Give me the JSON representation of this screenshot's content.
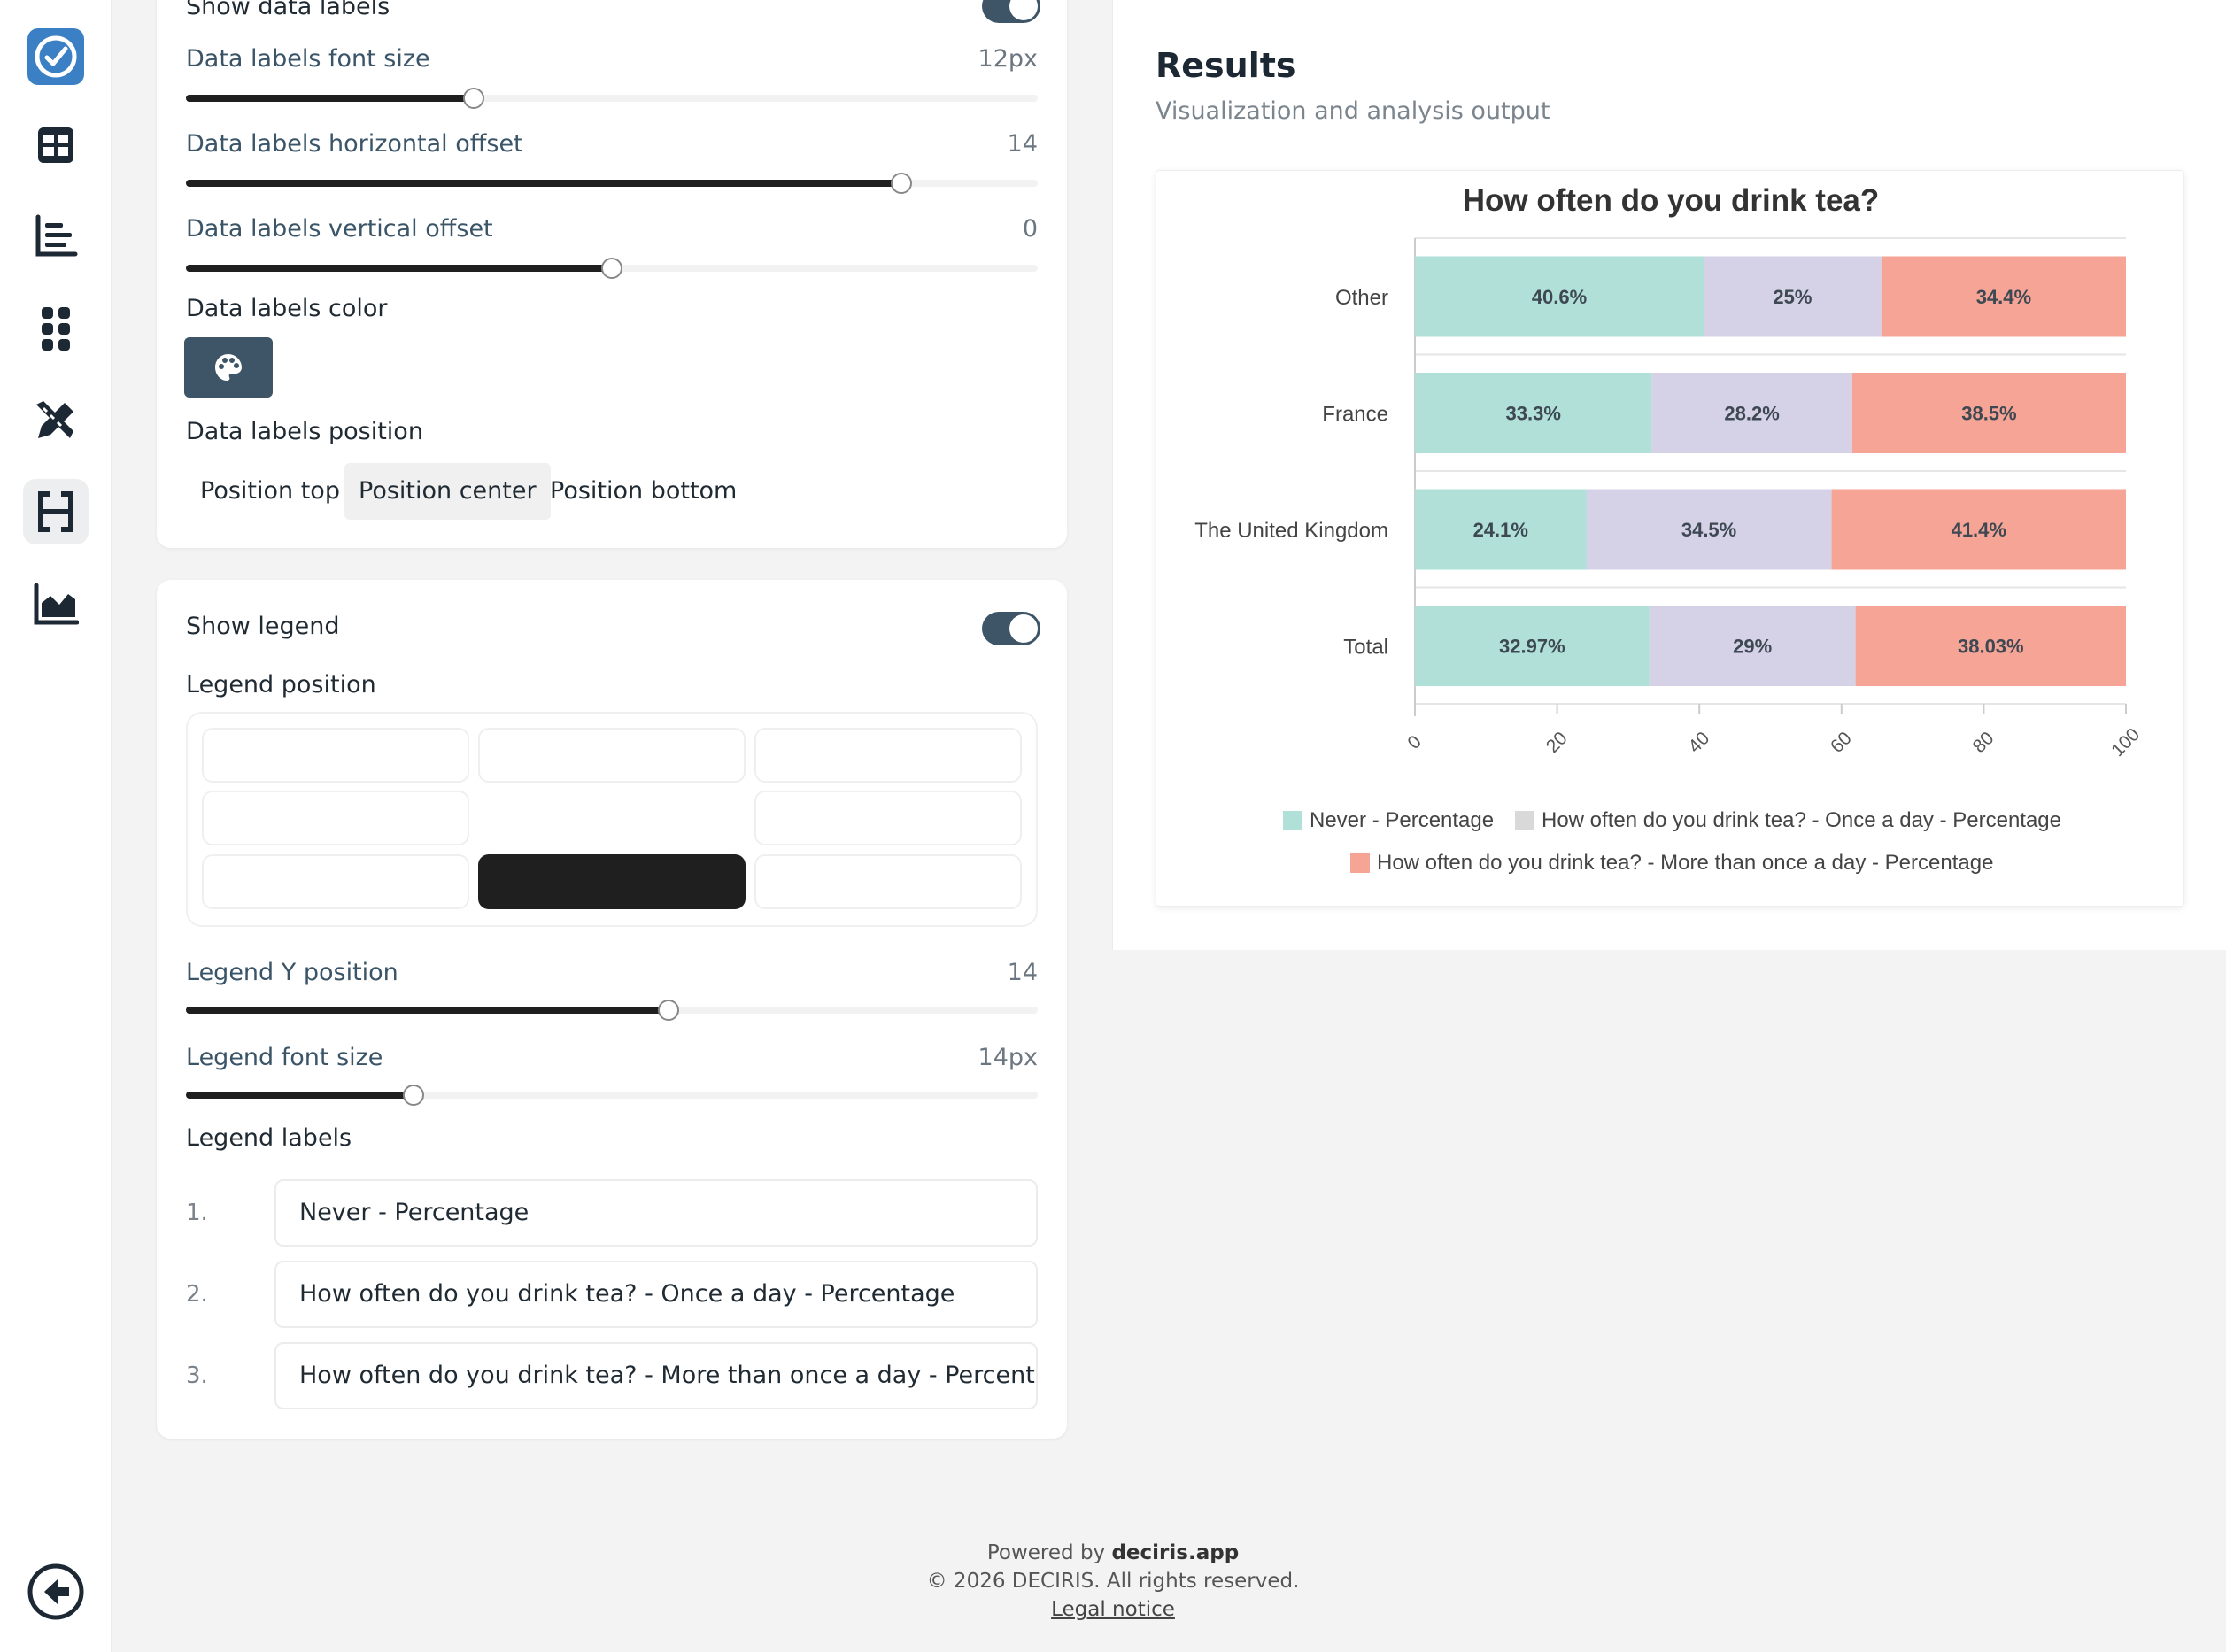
{
  "sidebar": {
    "items": [
      {
        "name": "logo",
        "icon": "decision-logo-icon"
      },
      {
        "name": "table",
        "icon": "table-icon"
      },
      {
        "name": "bar-chart",
        "icon": "bar-chart-icon"
      },
      {
        "name": "apps",
        "icon": "grid-dots-icon"
      },
      {
        "name": "design",
        "icon": "pencil-ruler-icon"
      },
      {
        "name": "heading",
        "icon": "heading-icon",
        "active": true
      },
      {
        "name": "area-chart",
        "icon": "area-chart-icon"
      }
    ],
    "back": {
      "icon": "back-arrow-icon"
    }
  },
  "data_labels": {
    "show_label": "Show data labels",
    "font_size": {
      "label": "Data labels font size",
      "value": "12px",
      "fraction": 0.34
    },
    "h_offset": {
      "label": "Data labels horizontal offset",
      "value": "14",
      "fraction": 0.84
    },
    "v_offset": {
      "label": "Data labels vertical offset",
      "value": "0",
      "fraction": 0.5
    },
    "color_label": "Data labels color",
    "position_label": "Data labels position",
    "positions": [
      "Position top",
      "Position center",
      "Position bottom"
    ],
    "selected_position": "Position center"
  },
  "legend": {
    "show_label": "Show legend",
    "show_enabled": true,
    "position_label": "Legend position",
    "selected_cell": "bottom-center",
    "y_position": {
      "label": "Legend Y position",
      "value": "14",
      "fraction": 0.57
    },
    "font_size": {
      "label": "Legend font size",
      "value": "14px",
      "fraction": 0.27
    },
    "labels_title": "Legend labels",
    "labels": [
      {
        "num": "1.",
        "text": "Never - Percentage"
      },
      {
        "num": "2.",
        "text": "How often do you drink tea? - Once a day - Percentage"
      },
      {
        "num": "3.",
        "text": "How often do you drink tea? - More than once a day - Percentage"
      }
    ]
  },
  "results": {
    "title": "Results",
    "subtitle": "Visualization and analysis output"
  },
  "chart_data": {
    "type": "bar",
    "orientation": "horizontal",
    "stacked": true,
    "title": "How often do you drink tea?",
    "categories": [
      "Other",
      "France",
      "The United Kingdom",
      "Total"
    ],
    "series": [
      {
        "name": "Never - Percentage",
        "values": [
          40.6,
          33.3,
          24.1,
          32.97
        ],
        "labels": [
          "40.6%",
          "33.3%",
          "24.1%",
          "32.97%"
        ],
        "color": "#b0e0d8"
      },
      {
        "name": "How often do you drink tea? - Once a day - Percentage",
        "values": [
          25,
          28.2,
          34.5,
          29
        ],
        "labels": [
          "25%",
          "28.2%",
          "34.5%",
          "29%"
        ],
        "color": "#d5d1e6"
      },
      {
        "name": "How often do you drink tea? - More than once a day - Percentage",
        "values": [
          34.4,
          38.5,
          41.4,
          38.03
        ],
        "labels": [
          "34.4%",
          "38.5%",
          "41.4%",
          "38.03%"
        ],
        "color": "#f5a496"
      }
    ],
    "xlim": [
      0,
      100
    ],
    "xticks": [
      "0",
      "20",
      "40",
      "60",
      "80",
      "100"
    ],
    "legend_position": "bottom",
    "legend_swatches": [
      "#b0e0d8",
      "#d9d9d9",
      "#f5a496"
    ]
  },
  "footer": {
    "powered_prefix": "Powered by ",
    "powered_brand": "deciris.app",
    "copyright": "© 2026 DECIRIS. All rights reserved.",
    "legal": "Legal notice"
  }
}
